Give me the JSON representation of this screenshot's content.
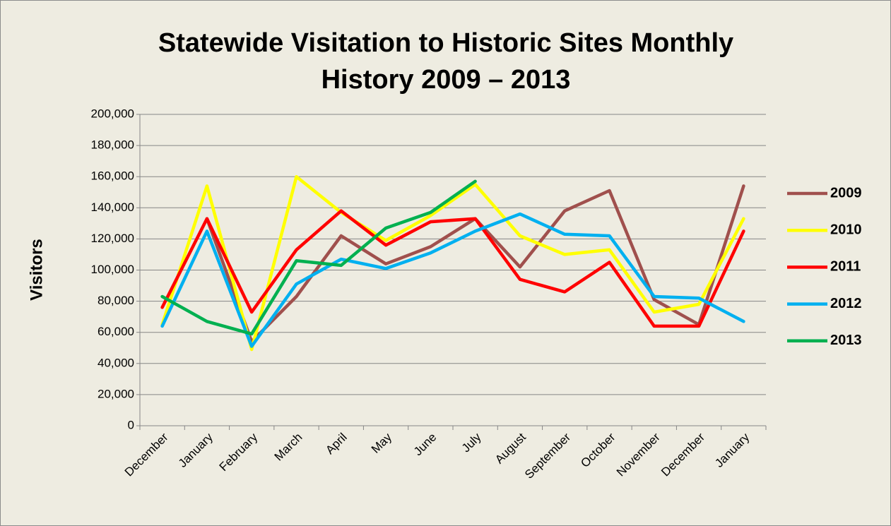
{
  "chart_data": {
    "type": "line",
    "title": "Statewide Visitation to Historic Sites Monthly History 2009 – 2013",
    "y_label": "Visitors",
    "categories": [
      "December",
      "January",
      "February",
      "March",
      "April",
      "May",
      "June",
      "July",
      "August",
      "September",
      "October",
      "November",
      "December",
      "January"
    ],
    "series": [
      {
        "name": "2009",
        "color": "#a0504d",
        "values": [
          null,
          133000,
          54000,
          83000,
          122000,
          104000,
          115000,
          133000,
          102000,
          138000,
          151000,
          81000,
          65000,
          154000
        ]
      },
      {
        "name": "2010",
        "color": "#ffff00",
        "values": [
          65000,
          154000,
          49000,
          160000,
          137000,
          119000,
          135000,
          155000,
          122000,
          110000,
          113000,
          73000,
          78000,
          133000
        ]
      },
      {
        "name": "2011",
        "color": "#ff0000",
        "values": [
          76000,
          133000,
          73000,
          113000,
          138000,
          116000,
          131000,
          133000,
          94000,
          86000,
          105000,
          64000,
          64000,
          125000
        ]
      },
      {
        "name": "2012",
        "color": "#00b0f0",
        "values": [
          64000,
          125000,
          51000,
          91000,
          107000,
          101000,
          111000,
          125000,
          136000,
          123000,
          122000,
          83000,
          82000,
          67000
        ]
      },
      {
        "name": "2013",
        "color": "#00b050",
        "values": [
          83000,
          67000,
          59000,
          106000,
          103000,
          127000,
          137000,
          157000,
          null,
          null,
          null,
          null,
          null,
          null
        ]
      }
    ],
    "ylim": [
      0,
      200000
    ],
    "yticks": [
      0,
      {
        "value": 20000,
        "label": "20,000"
      },
      {
        "value": 40000,
        "label": "40,000"
      },
      {
        "value": 60000,
        "label": "60,000"
      },
      {
        "value": 80000,
        "label": "80,000"
      },
      {
        "value": 100000,
        "label": "100,000"
      },
      {
        "value": 120000,
        "label": "120,000"
      },
      {
        "value": 140000,
        "label": "140,000"
      },
      {
        "value": 160000,
        "label": "160,000"
      },
      {
        "value": 180000,
        "label": "180,000"
      },
      {
        "value": 200000,
        "label": "200,000"
      }
    ],
    "grid": true,
    "legend": "right"
  }
}
